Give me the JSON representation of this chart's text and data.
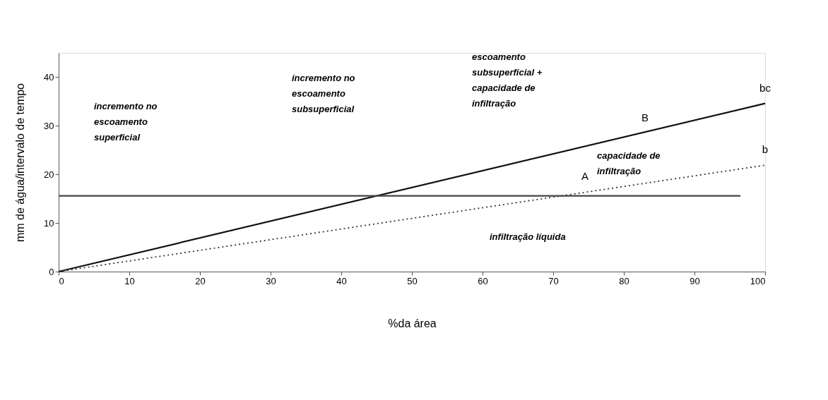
{
  "chart_data": {
    "type": "line",
    "xlabel": "%da área",
    "ylabel": "mm de água/intervalo de tempo",
    "xlim": [
      0,
      100
    ],
    "xticks": [
      0,
      10,
      20,
      30,
      40,
      50,
      60,
      70,
      80,
      90,
      100
    ],
    "ylim": [
      0,
      45
    ],
    "yticks": [
      0,
      10,
      20,
      30,
      40
    ],
    "grid": false,
    "series": [
      {
        "name": "bc",
        "color": "#111111",
        "x": [
          0,
          100
        ],
        "values": [
          0,
          34.6
        ],
        "line_style": "solid"
      },
      {
        "name": "b",
        "color": "#333333",
        "x": [
          0,
          100
        ],
        "values": [
          0,
          21.9
        ],
        "line_style": "dotted"
      },
      {
        "color": "#444444",
        "x": [
          0,
          96.5
        ],
        "values": [
          15.6,
          15.6
        ],
        "line_style": "solid"
      }
    ],
    "annotations": [
      "incremento no\nescoamento\nsuperficial",
      "incremento no\nescoamento\nsubsuperficial",
      "escoamento\nsubsuperficial +\ncapacidade de\ninfiltração",
      "capacidade de\ninfiltração",
      "infiltração líquida",
      "A",
      "B"
    ]
  }
}
